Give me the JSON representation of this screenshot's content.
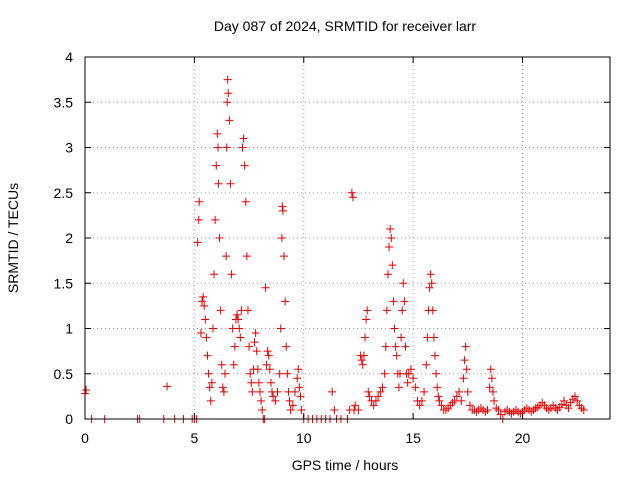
{
  "chart_data": {
    "type": "scatter",
    "title": "Day 087 of 2024, SRMTID for receiver larr",
    "xlabel": "GPS time / hours",
    "ylabel": "SRMTID / TECUs",
    "xlim": [
      0,
      24
    ],
    "ylim": [
      0,
      4
    ],
    "xticks": [
      0,
      5,
      10,
      15,
      20
    ],
    "xtick_labels": [
      "0",
      "5",
      "10",
      "15",
      "20"
    ],
    "yticks": [
      0,
      0.5,
      1,
      1.5,
      2,
      2.5,
      3,
      3.5,
      4
    ],
    "ytick_labels": [
      "0",
      "0.5",
      "1",
      "1.5",
      "2",
      "2.5",
      "3",
      "3.5",
      "4"
    ],
    "grid": true,
    "marker": "plus",
    "color": "#e00000",
    "series": [
      {
        "name": "SRMTID",
        "points": [
          [
            0.0,
            0.28
          ],
          [
            0.05,
            0.32
          ],
          [
            0.3,
            0.0
          ],
          [
            0.9,
            0.0
          ],
          [
            2.4,
            0.0
          ],
          [
            2.5,
            0.0
          ],
          [
            3.6,
            0.0
          ],
          [
            3.75,
            0.36
          ],
          [
            4.1,
            0.0
          ],
          [
            4.5,
            0.0
          ],
          [
            4.9,
            0.0
          ],
          [
            5.0,
            0.0
          ],
          [
            5.1,
            0.0
          ],
          [
            5.15,
            1.95
          ],
          [
            5.2,
            2.2
          ],
          [
            5.22,
            2.4
          ],
          [
            5.3,
            0.95
          ],
          [
            5.35,
            1.3
          ],
          [
            5.4,
            1.35
          ],
          [
            5.45,
            1.25
          ],
          [
            5.5,
            1.1
          ],
          [
            5.55,
            0.9
          ],
          [
            5.6,
            0.7
          ],
          [
            5.65,
            0.5
          ],
          [
            5.7,
            0.35
          ],
          [
            5.75,
            0.2
          ],
          [
            5.8,
            0.4
          ],
          [
            5.85,
            1.0
          ],
          [
            5.9,
            1.6
          ],
          [
            5.95,
            2.2
          ],
          [
            6.0,
            2.8
          ],
          [
            6.05,
            3.15
          ],
          [
            6.08,
            3.0
          ],
          [
            6.1,
            2.6
          ],
          [
            6.15,
            2.0
          ],
          [
            6.2,
            1.2
          ],
          [
            6.25,
            0.6
          ],
          [
            6.3,
            0.35
          ],
          [
            6.35,
            0.3
          ],
          [
            6.4,
            0.5
          ],
          [
            6.45,
            1.8
          ],
          [
            6.48,
            3.0
          ],
          [
            6.5,
            3.5
          ],
          [
            6.52,
            3.75
          ],
          [
            6.55,
            3.6
          ],
          [
            6.6,
            3.3
          ],
          [
            6.65,
            2.6
          ],
          [
            6.7,
            1.6
          ],
          [
            6.75,
            1.0
          ],
          [
            6.8,
            0.6
          ],
          [
            6.85,
            0.8
          ],
          [
            6.9,
            1.1
          ],
          [
            6.95,
            1.15
          ],
          [
            7.0,
            1.1
          ],
          [
            7.05,
            1.0
          ],
          [
            7.1,
            0.9
          ],
          [
            7.15,
            1.2
          ],
          [
            7.2,
            3.0
          ],
          [
            7.25,
            3.1
          ],
          [
            7.3,
            2.8
          ],
          [
            7.35,
            2.4
          ],
          [
            7.4,
            1.8
          ],
          [
            7.45,
            1.2
          ],
          [
            7.5,
            0.8
          ],
          [
            7.55,
            0.5
          ],
          [
            7.6,
            0.4
          ],
          [
            7.65,
            0.3
          ],
          [
            7.7,
            0.55
          ],
          [
            7.75,
            0.85
          ],
          [
            7.8,
            0.95
          ],
          [
            7.85,
            0.75
          ],
          [
            7.9,
            0.55
          ],
          [
            7.95,
            0.4
          ],
          [
            8.0,
            0.3
          ],
          [
            8.05,
            0.2
          ],
          [
            8.1,
            0.1
          ],
          [
            8.15,
            0.0
          ],
          [
            8.2,
            0.0
          ],
          [
            8.25,
            1.45
          ],
          [
            8.3,
            0.6
          ],
          [
            8.35,
            0.75
          ],
          [
            8.4,
            0.7
          ],
          [
            8.45,
            0.55
          ],
          [
            8.5,
            0.4
          ],
          [
            8.55,
            0.3
          ],
          [
            8.6,
            0.25
          ],
          [
            8.7,
            0.2
          ],
          [
            8.8,
            0.3
          ],
          [
            8.9,
            0.5
          ],
          [
            8.95,
            1.0
          ],
          [
            9.0,
            2.0
          ],
          [
            9.02,
            2.35
          ],
          [
            9.05,
            2.3
          ],
          [
            9.1,
            1.8
          ],
          [
            9.15,
            1.3
          ],
          [
            9.2,
            0.8
          ],
          [
            9.25,
            0.5
          ],
          [
            9.3,
            0.3
          ],
          [
            9.35,
            0.2
          ],
          [
            9.4,
            0.1
          ],
          [
            9.5,
            0.15
          ],
          [
            9.6,
            0.3
          ],
          [
            9.7,
            0.45
          ],
          [
            9.75,
            0.55
          ],
          [
            9.8,
            0.35
          ],
          [
            9.85,
            0.25
          ],
          [
            9.9,
            0.1
          ],
          [
            10.0,
            0.0
          ],
          [
            10.2,
            0.0
          ],
          [
            10.4,
            0.0
          ],
          [
            10.6,
            0.0
          ],
          [
            10.8,
            0.0
          ],
          [
            11.0,
            0.0
          ],
          [
            11.2,
            0.0
          ],
          [
            11.3,
            0.3
          ],
          [
            11.4,
            0.1
          ],
          [
            11.5,
            0.0
          ],
          [
            11.7,
            0.0
          ],
          [
            12.0,
            0.0
          ],
          [
            12.1,
            0.1
          ],
          [
            12.2,
            2.5
          ],
          [
            12.25,
            2.45
          ],
          [
            12.3,
            0.1
          ],
          [
            12.35,
            0.15
          ],
          [
            12.5,
            0.1
          ],
          [
            12.6,
            0.7
          ],
          [
            12.65,
            0.65
          ],
          [
            12.7,
            0.6
          ],
          [
            12.75,
            0.7
          ],
          [
            12.8,
            0.9
          ],
          [
            12.85,
            1.1
          ],
          [
            12.9,
            1.2
          ],
          [
            12.95,
            0.3
          ],
          [
            13.0,
            0.25
          ],
          [
            13.1,
            0.2
          ],
          [
            13.2,
            0.15
          ],
          [
            13.3,
            0.2
          ],
          [
            13.4,
            0.25
          ],
          [
            13.5,
            0.3
          ],
          [
            13.6,
            0.35
          ],
          [
            13.7,
            0.5
          ],
          [
            13.75,
            0.8
          ],
          [
            13.8,
            1.2
          ],
          [
            13.85,
            1.6
          ],
          [
            13.9,
            1.9
          ],
          [
            13.95,
            2.1
          ],
          [
            14.0,
            2.0
          ],
          [
            14.05,
            1.7
          ],
          [
            14.1,
            1.3
          ],
          [
            14.15,
            1.0
          ],
          [
            14.2,
            0.8
          ],
          [
            14.25,
            0.7
          ],
          [
            14.3,
            0.5
          ],
          [
            14.35,
            0.35
          ],
          [
            14.4,
            0.5
          ],
          [
            14.45,
            0.9
          ],
          [
            14.5,
            1.2
          ],
          [
            14.55,
            1.5
          ],
          [
            14.6,
            1.3
          ],
          [
            14.65,
            0.8
          ],
          [
            14.7,
            0.5
          ],
          [
            14.75,
            0.4
          ],
          [
            14.8,
            0.5
          ],
          [
            14.9,
            0.55
          ],
          [
            15.0,
            0.45
          ],
          [
            15.1,
            0.35
          ],
          [
            15.2,
            0.2
          ],
          [
            15.3,
            0.15
          ],
          [
            15.4,
            0.2
          ],
          [
            15.5,
            0.3
          ],
          [
            15.6,
            0.6
          ],
          [
            15.65,
            0.9
          ],
          [
            15.7,
            1.2
          ],
          [
            15.75,
            1.45
          ],
          [
            15.8,
            1.6
          ],
          [
            15.85,
            1.5
          ],
          [
            15.9,
            1.2
          ],
          [
            15.95,
            0.9
          ],
          [
            16.0,
            0.7
          ],
          [
            16.05,
            0.5
          ],
          [
            16.1,
            0.35
          ],
          [
            16.15,
            0.25
          ],
          [
            16.2,
            0.2
          ],
          [
            16.3,
            0.15
          ],
          [
            16.4,
            0.1
          ],
          [
            16.5,
            0.1
          ],
          [
            16.6,
            0.12
          ],
          [
            16.7,
            0.15
          ],
          [
            16.8,
            0.18
          ],
          [
            16.9,
            0.2
          ],
          [
            17.0,
            0.25
          ],
          [
            17.1,
            0.3
          ],
          [
            17.2,
            0.2
          ],
          [
            17.3,
            0.45
          ],
          [
            17.35,
            0.65
          ],
          [
            17.4,
            0.8
          ],
          [
            17.45,
            0.55
          ],
          [
            17.5,
            0.3
          ],
          [
            17.6,
            0.15
          ],
          [
            17.7,
            0.1
          ],
          [
            17.8,
            0.1
          ],
          [
            17.9,
            0.08
          ],
          [
            18.0,
            0.1
          ],
          [
            18.1,
            0.12
          ],
          [
            18.2,
            0.1
          ],
          [
            18.3,
            0.08
          ],
          [
            18.4,
            0.1
          ],
          [
            18.5,
            0.35
          ],
          [
            18.55,
            0.55
          ],
          [
            18.6,
            0.45
          ],
          [
            18.65,
            0.3
          ],
          [
            18.7,
            0.2
          ],
          [
            18.8,
            0.12
          ],
          [
            18.9,
            0.1
          ],
          [
            19.0,
            0.05
          ],
          [
            19.1,
            0.0
          ],
          [
            19.2,
            0.08
          ],
          [
            19.3,
            0.1
          ],
          [
            19.4,
            0.08
          ],
          [
            19.5,
            0.06
          ],
          [
            19.6,
            0.08
          ],
          [
            19.7,
            0.1
          ],
          [
            19.8,
            0.08
          ],
          [
            19.9,
            0.06
          ],
          [
            20.0,
            0.08
          ],
          [
            20.1,
            0.1
          ],
          [
            20.2,
            0.12
          ],
          [
            20.3,
            0.1
          ],
          [
            20.4,
            0.08
          ],
          [
            20.5,
            0.1
          ],
          [
            20.6,
            0.12
          ],
          [
            20.7,
            0.13
          ],
          [
            20.8,
            0.15
          ],
          [
            20.9,
            0.18
          ],
          [
            21.0,
            0.15
          ],
          [
            21.1,
            0.12
          ],
          [
            21.2,
            0.1
          ],
          [
            21.3,
            0.12
          ],
          [
            21.4,
            0.15
          ],
          [
            21.5,
            0.12
          ],
          [
            21.6,
            0.1
          ],
          [
            21.7,
            0.13
          ],
          [
            21.8,
            0.16
          ],
          [
            21.9,
            0.2
          ],
          [
            22.0,
            0.15
          ],
          [
            22.1,
            0.12
          ],
          [
            22.2,
            0.18
          ],
          [
            22.3,
            0.22
          ],
          [
            22.4,
            0.25
          ],
          [
            22.5,
            0.2
          ],
          [
            22.6,
            0.15
          ],
          [
            22.7,
            0.12
          ],
          [
            22.8,
            0.1
          ]
        ]
      }
    ]
  }
}
